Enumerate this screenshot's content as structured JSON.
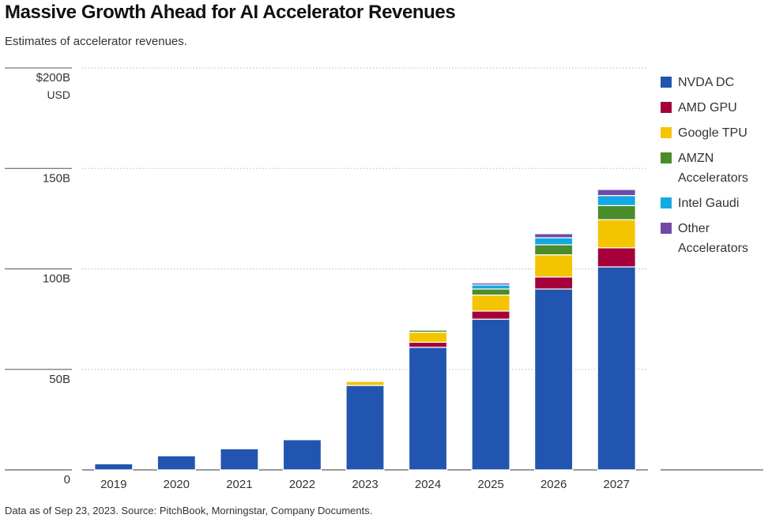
{
  "title": "Massive Growth Ahead for AI Accelerator Revenues",
  "subtitle": "Estimates of accelerator revenues.",
  "footnote": "Data as of Sep 23, 2023. Source: PitchBook, Morningstar, Company Documents.",
  "chart_data": {
    "type": "bar",
    "stacked": true,
    "title": "Massive Growth Ahead for AI Accelerator Revenues",
    "subtitle": "Estimates of accelerator revenues.",
    "unit_label": "USD",
    "categories": [
      "2019",
      "2020",
      "2021",
      "2022",
      "2023",
      "2024",
      "2025",
      "2026",
      "2027"
    ],
    "ylim": [
      0,
      200
    ],
    "yticks": [
      {
        "value": 0,
        "label": "0"
      },
      {
        "value": 50,
        "label": "50B"
      },
      {
        "value": 100,
        "label": "100B"
      },
      {
        "value": 150,
        "label": "150B"
      },
      {
        "value": 200,
        "label": "$200B"
      }
    ],
    "grid": true,
    "legend_position": "right",
    "series": [
      {
        "name": "NVDA DC",
        "color": "#2155b0",
        "values": [
          3,
          7,
          10.5,
          15,
          42,
          61,
          75,
          90,
          101
        ]
      },
      {
        "name": "AMD GPU",
        "color": "#a6003a",
        "values": [
          0,
          0,
          0,
          0,
          0,
          2.5,
          4,
          6,
          9.5
        ]
      },
      {
        "name": "Google TPU",
        "color": "#f5c400",
        "values": [
          0,
          0,
          0,
          0,
          2,
          5,
          8,
          11,
          14
        ]
      },
      {
        "name": "AMZN Accelerators",
        "color": "#4a8c2a",
        "values": [
          0,
          0,
          0,
          0,
          0,
          1,
          3,
          5,
          7
        ]
      },
      {
        "name": "Intel Gaudi",
        "color": "#14a9e0",
        "values": [
          0,
          0,
          0,
          0,
          0,
          0,
          2,
          3.5,
          5
        ]
      },
      {
        "name": "Other Accelerators",
        "color": "#6f4aa8",
        "values": [
          0,
          0,
          0,
          0,
          0,
          0,
          1,
          2,
          3
        ]
      }
    ]
  }
}
